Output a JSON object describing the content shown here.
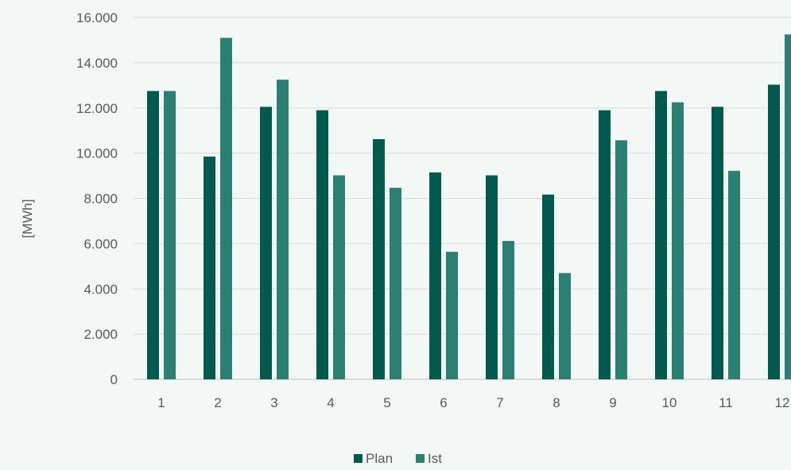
{
  "chart_data": {
    "type": "bar",
    "categories": [
      "1",
      "2",
      "3",
      "4",
      "5",
      "6",
      "7",
      "8",
      "9",
      "10",
      "11",
      "12"
    ],
    "series": [
      {
        "name": "Plan",
        "color": "#005a4e",
        "values": [
          12750,
          9850,
          12050,
          11900,
          10620,
          9150,
          9020,
          8170,
          11900,
          12750,
          12050,
          13030
        ]
      },
      {
        "name": "Ist",
        "color": "#2b7f73",
        "values": [
          12750,
          15100,
          13250,
          9020,
          8470,
          5640,
          6120,
          4700,
          10570,
          12250,
          9220,
          15250
        ]
      }
    ],
    "ylabel": "[MWh]",
    "ylim": [
      0,
      16000
    ],
    "yticks": [
      0,
      2000,
      4000,
      6000,
      8000,
      10000,
      12000,
      14000,
      16000
    ],
    "ytick_labels": [
      "0",
      "2.000",
      "4.000",
      "6.000",
      "8.000",
      "10.000",
      "12.000",
      "14.000",
      "16.000"
    ],
    "grid": true,
    "legend_position": "bottom"
  }
}
